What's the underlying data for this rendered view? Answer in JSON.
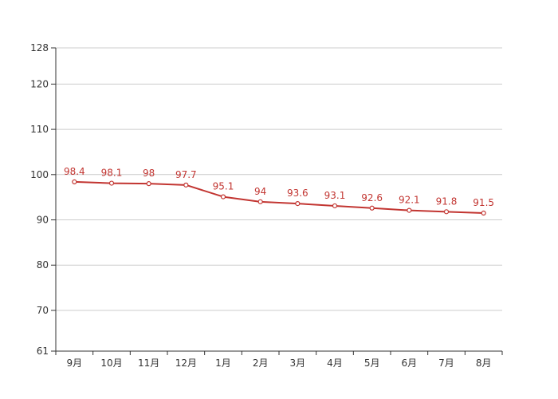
{
  "chart_data": {
    "type": "line",
    "title": "",
    "xlabel": "",
    "ylabel": "",
    "categories": [
      "9月",
      "10月",
      "11月",
      "12月",
      "1月",
      "2月",
      "3月",
      "4月",
      "5月",
      "6月",
      "7月",
      "8月"
    ],
    "series": [
      {
        "values": [
          98.4,
          98.1,
          98,
          97.7,
          95.1,
          94,
          93.6,
          93.1,
          92.6,
          92.1,
          91.8,
          91.5
        ],
        "value_labels": [
          "98.4",
          "98.1",
          "98",
          "97.7",
          "95.1",
          "94",
          "93.6",
          "93.1",
          "92.6",
          "92.1",
          "91.8",
          "91.5"
        ],
        "color": "#c23531"
      }
    ],
    "ylim": [
      61,
      128
    ],
    "yticks": [
      61,
      70,
      80,
      90,
      100,
      110,
      120,
      128
    ],
    "ytick_labels": [
      "61",
      "70",
      "80",
      "90",
      "100",
      "110",
      "120",
      "128"
    ],
    "grid": true,
    "legend": false,
    "colors": {
      "grid": "#cccccc",
      "axis": "#333333",
      "line": "#c23531",
      "label": "#c23531"
    }
  }
}
